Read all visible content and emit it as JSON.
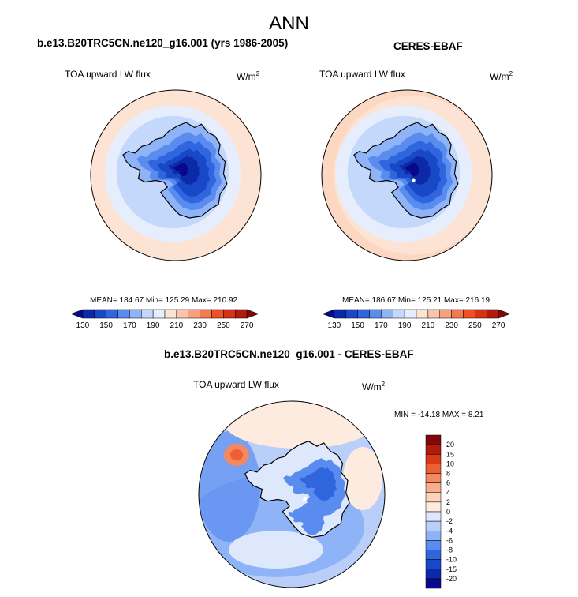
{
  "main_title": "ANN",
  "panels": [
    {
      "title": "b.e13.B20TRC5CN.ne120_g16.001 (yrs 1986-2005)",
      "variable": "TOA upward LW flux",
      "units": "W/m",
      "units_exp": "2",
      "stats": "MEAN= 184.67  Min= 125.29  Max= 210.92"
    },
    {
      "title": "CERES-EBAF",
      "variable": "TOA upward LW flux",
      "units": "W/m",
      "units_exp": "2",
      "stats": "MEAN= 186.67  Min= 125.21  Max= 216.19"
    },
    {
      "title": "b.e13.B20TRC5CN.ne120_g16.001 - CERES-EBAF",
      "variable": "TOA upward LW flux",
      "units": "W/m",
      "units_exp": "2",
      "stats": "MIN = -14.18 MAX =   8.21"
    }
  ],
  "colors": {
    "main_scale": [
      "#08088c",
      "#0c2aa8",
      "#1848c8",
      "#2f66de",
      "#5a8cf0",
      "#8fb3f7",
      "#c4d8fb",
      "#e6eefd",
      "#fde3d3",
      "#fcc5ab",
      "#f9a07d",
      "#f67a50",
      "#ee5126",
      "#d63315",
      "#b01b0d",
      "#800808"
    ],
    "diff_scale": [
      "#08088c",
      "#0c2aa8",
      "#1848c8",
      "#2f66de",
      "#5a8cf0",
      "#8fb3f7",
      "#b9cff9",
      "#dde8fd",
      "#fdebe0",
      "#fcd2bd",
      "#f9ad8b",
      "#f6885f",
      "#ee5f33",
      "#d63a16",
      "#b01b0d",
      "#800808"
    ]
  },
  "chart_data": [
    {
      "type": "heatmap",
      "projection": "south-polar-stereographic",
      "title": "b.e13.B20TRC5CN.ne120_g16.001 (yrs 1986-2005)",
      "variable": "TOA upward LW flux",
      "units": "W/m2",
      "mean": 184.67,
      "min": 125.29,
      "max": 210.92,
      "colorbar_levels": [
        130,
        140,
        150,
        160,
        170,
        180,
        190,
        200,
        210,
        220,
        230,
        240,
        250,
        260,
        270
      ],
      "colorbar_tick_labels": [
        "130",
        "150",
        "170",
        "190",
        "210",
        "230",
        "250",
        "270"
      ]
    },
    {
      "type": "heatmap",
      "projection": "south-polar-stereographic",
      "title": "CERES-EBAF",
      "variable": "TOA upward LW flux",
      "units": "W/m2",
      "mean": 186.67,
      "min": 125.21,
      "max": 216.19,
      "colorbar_levels": [
        130,
        140,
        150,
        160,
        170,
        180,
        190,
        200,
        210,
        220,
        230,
        240,
        250,
        260,
        270
      ],
      "colorbar_tick_labels": [
        "130",
        "150",
        "170",
        "190",
        "210",
        "230",
        "250",
        "270"
      ]
    },
    {
      "type": "heatmap",
      "projection": "south-polar-stereographic",
      "title": "b.e13.B20TRC5CN.ne120_g16.001 - CERES-EBAF",
      "variable": "TOA upward LW flux",
      "units": "W/m2",
      "min": -14.18,
      "max": 8.21,
      "colorbar_levels": [
        -20,
        -15,
        -10,
        -8,
        -6,
        -4,
        -2,
        0,
        2,
        4,
        6,
        8,
        10,
        15,
        20
      ],
      "colorbar_tick_labels": [
        "20",
        "15",
        "10",
        "8",
        "6",
        "4",
        "2",
        "0",
        "-2",
        "-4",
        "-6",
        "-8",
        "-10",
        "-15",
        "-20"
      ]
    }
  ]
}
